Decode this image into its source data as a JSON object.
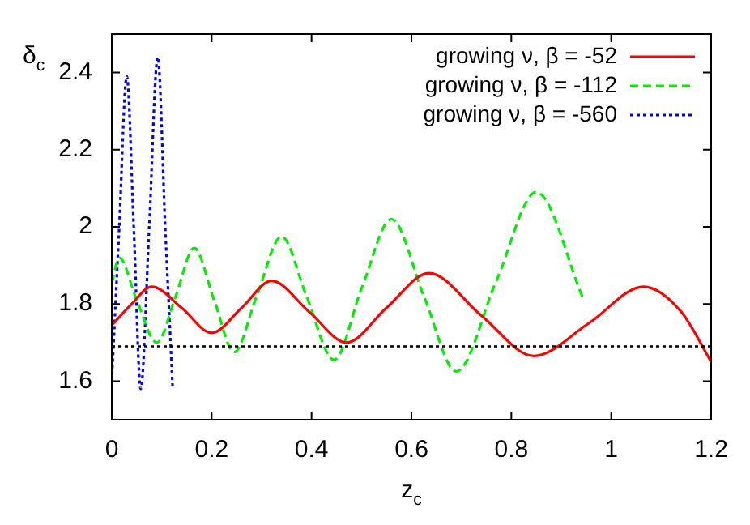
{
  "chart_data": {
    "type": "line",
    "xlabel": "z$_{c}$",
    "ylabel": "δ$_{c}$",
    "xlim": [
      0,
      1.2
    ],
    "ylim": [
      1.5,
      2.5
    ],
    "xticks": [
      0,
      0.2,
      0.4,
      0.6,
      0.8,
      1,
      1.2
    ],
    "yticks": [
      1.6,
      1.8,
      2,
      2.2,
      2.4
    ],
    "grid": false,
    "legend": "top right",
    "marker": "none",
    "series": [
      {
        "name": "growing ν, β = -52",
        "color": "#ff0000",
        "line_style": "solid",
        "x": [
          0,
          0.04,
          0.08,
          0.14,
          0.2,
          0.26,
          0.32,
          0.395,
          0.47,
          0.55,
          0.635,
          0.74,
          0.845,
          0.955,
          1.065,
          1.14,
          1.2
        ],
        "values": [
          1.745,
          1.8,
          1.845,
          1.79,
          1.725,
          1.79,
          1.86,
          1.78,
          1.7,
          1.79,
          1.88,
          1.77,
          1.665,
          1.75,
          1.845,
          1.78,
          1.65
        ]
      },
      {
        "name": "growing ν, β = -112",
        "color": "#00ee00",
        "line_style": "dashed",
        "x": [
          0,
          0.015,
          0.05,
          0.09,
          0.128,
          0.165,
          0.205,
          0.245,
          0.29,
          0.34,
          0.39,
          0.445,
          0.5,
          0.56,
          0.625,
          0.69,
          0.77,
          0.85,
          0.945
        ],
        "values": [
          1.855,
          1.92,
          1.81,
          1.7,
          1.82,
          1.945,
          1.81,
          1.675,
          1.82,
          1.975,
          1.82,
          1.655,
          1.84,
          2.02,
          1.82,
          1.625,
          1.86,
          2.09,
          1.81
        ]
      },
      {
        "name": "growing ν, β = -560",
        "color": "#0000ff",
        "line_style": "dotted",
        "x": [
          0,
          0.015,
          0.03,
          0.044,
          0.058,
          0.075,
          0.092,
          0.107,
          0.122
        ],
        "values": [
          1.6,
          2.0,
          2.39,
          2.0,
          1.58,
          2.0,
          2.44,
          2.0,
          1.58
        ]
      }
    ],
    "ref_lines": [
      {
        "axis": "y",
        "value": 1.69,
        "color": "#000000",
        "line_style": "dotted"
      }
    ]
  }
}
